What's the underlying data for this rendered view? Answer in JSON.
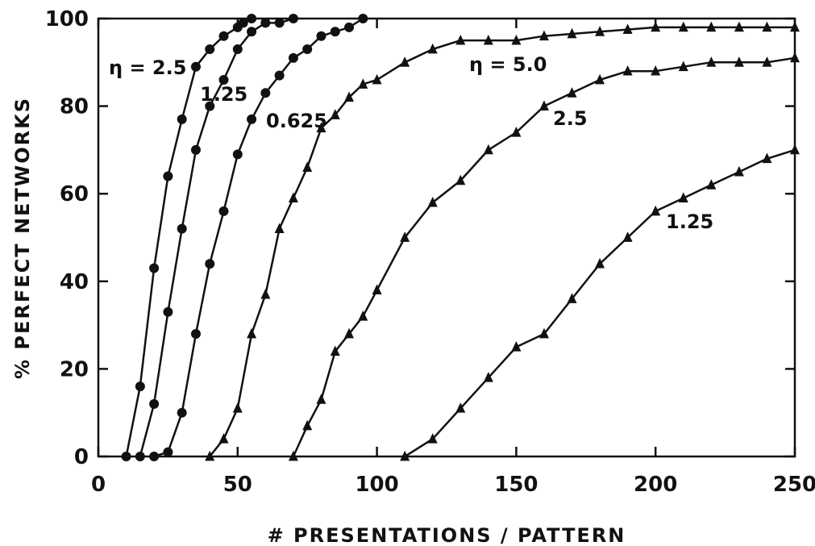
{
  "chart_data": {
    "type": "line",
    "title": "",
    "xlabel": "# PRESENTATIONS / PATTERN",
    "ylabel": "% PERFECT NETWORKS",
    "xlim": [
      0,
      250
    ],
    "ylim": [
      0,
      100
    ],
    "xticks": [
      "0",
      "50",
      "100",
      "150",
      "200",
      "250"
    ],
    "yticks": [
      "0",
      "20",
      "40",
      "60",
      "80",
      "100"
    ],
    "grid": false,
    "legend": "none",
    "series": [
      {
        "name": "η = 2.5",
        "marker": "circle",
        "x": [
          10,
          15,
          20,
          25,
          30,
          35,
          40,
          45,
          50,
          52,
          55
        ],
        "y": [
          0,
          16,
          43,
          64,
          77,
          89,
          93,
          96,
          98,
          99,
          100
        ]
      },
      {
        "name": "1.25",
        "marker": "circle",
        "x": [
          15,
          20,
          25,
          30,
          35,
          40,
          45,
          50,
          55,
          60,
          65,
          70
        ],
        "y": [
          0,
          12,
          33,
          52,
          70,
          80,
          86,
          93,
          97,
          99,
          99,
          100
        ]
      },
      {
        "name": "0.625",
        "marker": "circle",
        "x": [
          20,
          25,
          30,
          35,
          40,
          45,
          50,
          55,
          60,
          65,
          70,
          75,
          80,
          85,
          90,
          95
        ],
        "y": [
          0,
          1,
          10,
          28,
          44,
          56,
          69,
          77,
          83,
          87,
          91,
          93,
          96,
          97,
          98,
          100
        ]
      },
      {
        "name": "η = 5.0",
        "marker": "triangle",
        "x": [
          40,
          45,
          50,
          55,
          60,
          65,
          70,
          75,
          80,
          85,
          90,
          95,
          100,
          110,
          120,
          130,
          140,
          150,
          160,
          170,
          180,
          190,
          200,
          210,
          220,
          230,
          240,
          250
        ],
        "y": [
          0,
          4,
          11,
          28,
          37,
          52,
          59,
          66,
          75,
          78,
          82,
          85,
          86,
          90,
          93,
          95,
          95,
          95,
          96,
          96.5,
          97,
          97.5,
          98,
          98,
          98,
          98,
          98,
          98
        ]
      },
      {
        "name": "2.5",
        "marker": "triangle",
        "x": [
          70,
          75,
          80,
          85,
          90,
          95,
          100,
          110,
          120,
          130,
          140,
          150,
          160,
          170,
          180,
          190,
          200,
          210,
          220,
          230,
          240,
          250
        ],
        "y": [
          0,
          7,
          13,
          24,
          28,
          32,
          38,
          50,
          58,
          63,
          70,
          74,
          80,
          83,
          86,
          88,
          88,
          89,
          90,
          90,
          90,
          91
        ]
      },
      {
        "name": "1.25",
        "marker": "triangle",
        "x": [
          110,
          120,
          130,
          140,
          150,
          160,
          170,
          180,
          190,
          200,
          210,
          220,
          230,
          240,
          250
        ],
        "y": [
          0,
          4,
          11,
          18,
          25,
          28,
          36,
          44,
          50,
          56,
          59,
          62,
          65,
          68,
          70
        ]
      }
    ]
  }
}
